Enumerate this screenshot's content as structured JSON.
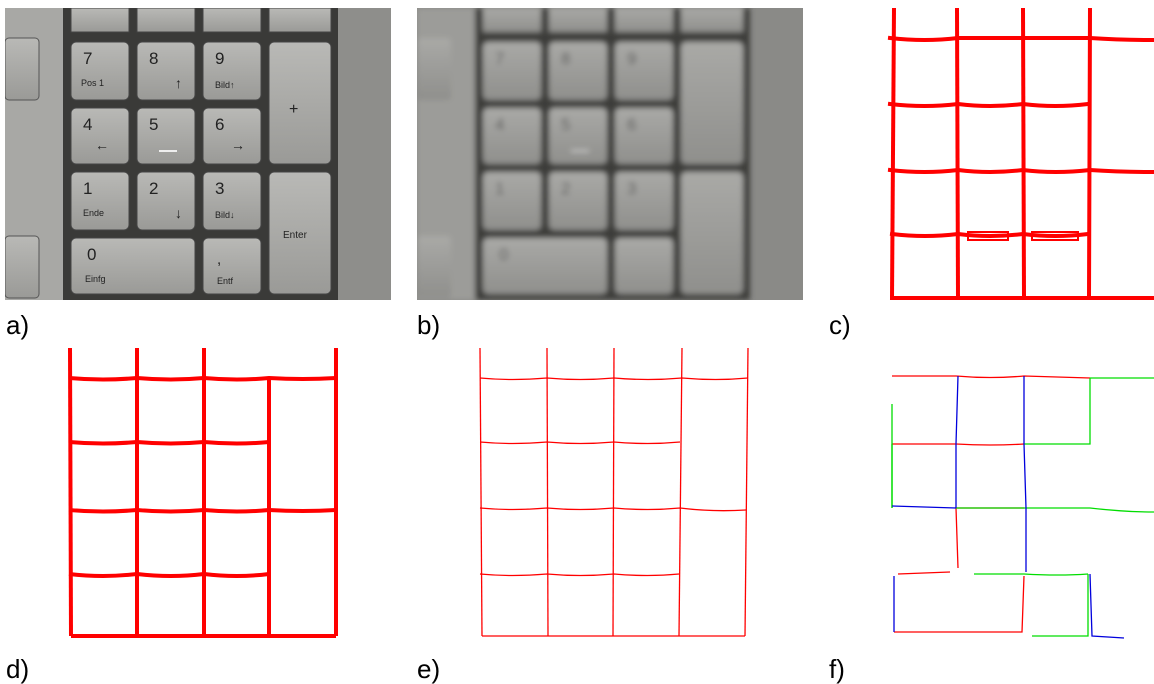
{
  "captions": {
    "a": "a)",
    "b": "b)",
    "c": "c)",
    "d": "d)",
    "e": "e)",
    "f": "f)"
  },
  "keypad": {
    "k7": {
      "digit": "7",
      "sub": "Pos 1"
    },
    "k8": {
      "digit": "8",
      "sub": "↑"
    },
    "k9": {
      "digit": "9",
      "sub": "Bild↑"
    },
    "k4": {
      "digit": "4",
      "sub": "←"
    },
    "k5": {
      "digit": "5",
      "sub": ""
    },
    "k6": {
      "digit": "6",
      "sub": "→"
    },
    "k1": {
      "digit": "1",
      "sub": "Ende"
    },
    "k2": {
      "digit": "2",
      "sub": "↓"
    },
    "k3": {
      "digit": "3",
      "sub": "Bild↓"
    },
    "k0": {
      "digit": "0",
      "sub": "Einfg"
    },
    "kcomma": {
      "digit": ",",
      "sub": "Entf"
    },
    "kplus": {
      "digit": "+",
      "sub": ""
    },
    "kenter": {
      "digit": "",
      "sub": "Enter"
    }
  },
  "colors": {
    "red": "#ff0000",
    "green": "#00dd00",
    "blue": "#0000dd"
  }
}
